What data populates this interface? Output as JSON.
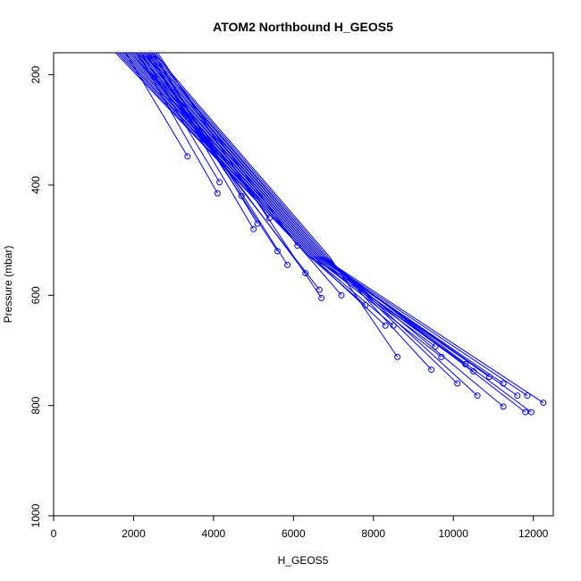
{
  "chart_data": {
    "type": "line",
    "title": "ATOM2 Northbound H_GEOS5",
    "xlabel": "H_GEOS5",
    "ylabel": "Pressure (mbar)",
    "xlim": [
      0,
      12500
    ],
    "ylim": [
      1000,
      160
    ],
    "y_reversed": true,
    "x_ticks": [
      0,
      2000,
      4000,
      6000,
      8000,
      10000,
      12000
    ],
    "y_ticks": [
      200,
      400,
      600,
      800,
      1000
    ],
    "grid": false,
    "legend": "none",
    "color": "#0000ff",
    "series": [
      {
        "points": [
          [
            1800,
            160
          ],
          [
            3350,
            348
          ]
        ]
      },
      {
        "points": [
          [
            2100,
            160
          ],
          [
            4100,
            415
          ]
        ]
      },
      {
        "points": [
          [
            2200,
            160
          ],
          [
            4150,
            395
          ]
        ]
      },
      {
        "points": [
          [
            2300,
            160
          ],
          [
            4700,
            420
          ]
        ]
      },
      {
        "points": [
          [
            2400,
            160
          ],
          [
            5000,
            480
          ]
        ]
      },
      {
        "points": [
          [
            2500,
            160
          ],
          [
            5100,
            470
          ]
        ]
      },
      {
        "points": [
          [
            2250,
            160
          ],
          [
            5400,
            460
          ]
        ]
      },
      {
        "points": [
          [
            2350,
            160
          ],
          [
            5600,
            520
          ]
        ]
      },
      {
        "points": [
          [
            2450,
            160
          ],
          [
            5850,
            545
          ]
        ]
      },
      {
        "points": [
          [
            2550,
            160
          ],
          [
            6100,
            510
          ]
        ]
      },
      {
        "points": [
          [
            2600,
            160
          ],
          [
            6700,
            605
          ]
        ]
      },
      {
        "points": [
          [
            2150,
            160
          ],
          [
            6300,
            560
          ]
        ]
      },
      {
        "points": [
          [
            2050,
            160
          ],
          [
            6650,
            590
          ]
        ]
      },
      {
        "points": [
          [
            1950,
            160
          ],
          [
            7200,
            600
          ]
        ]
      },
      {
        "points": [
          [
            2500,
            160
          ],
          [
            6900,
            530
          ],
          [
            8600,
            712
          ]
        ]
      },
      {
        "points": [
          [
            2450,
            160
          ],
          [
            6850,
            530
          ],
          [
            9450,
            735
          ]
        ]
      },
      {
        "points": [
          [
            2400,
            160
          ],
          [
            6800,
            530
          ],
          [
            10100,
            760
          ]
        ]
      },
      {
        "points": [
          [
            2350,
            160
          ],
          [
            6800,
            530
          ],
          [
            10600,
            782
          ]
        ]
      },
      {
        "points": [
          [
            2300,
            160
          ],
          [
            6750,
            530
          ],
          [
            11250,
            802
          ]
        ]
      },
      {
        "points": [
          [
            2250,
            160
          ],
          [
            6750,
            530
          ],
          [
            11800,
            812
          ]
        ]
      },
      {
        "points": [
          [
            2200,
            160
          ],
          [
            6700,
            530
          ],
          [
            11950,
            812
          ]
        ]
      },
      {
        "points": [
          [
            2150,
            160
          ],
          [
            6700,
            530
          ],
          [
            12250,
            795
          ]
        ]
      },
      {
        "points": [
          [
            2100,
            160
          ],
          [
            6650,
            530
          ],
          [
            11850,
            782
          ]
        ]
      },
      {
        "points": [
          [
            2050,
            160
          ],
          [
            6650,
            530
          ],
          [
            11600,
            782
          ]
        ]
      },
      {
        "points": [
          [
            2000,
            160
          ],
          [
            6600,
            530
          ],
          [
            11250,
            760
          ]
        ]
      },
      {
        "points": [
          [
            1950,
            160
          ],
          [
            6600,
            530
          ],
          [
            10900,
            748
          ]
        ]
      },
      {
        "points": [
          [
            1900,
            160
          ],
          [
            6550,
            530
          ],
          [
            10500,
            738
          ]
        ]
      },
      {
        "points": [
          [
            1850,
            160
          ],
          [
            6550,
            530
          ],
          [
            10300,
            725
          ]
        ]
      },
      {
        "points": [
          [
            1800,
            160
          ],
          [
            6500,
            530
          ],
          [
            9700,
            712
          ]
        ]
      },
      {
        "points": [
          [
            1750,
            160
          ],
          [
            6500,
            530
          ],
          [
            9550,
            693
          ]
        ]
      },
      {
        "points": [
          [
            1700,
            160
          ],
          [
            6450,
            530
          ],
          [
            8500,
            655
          ]
        ]
      },
      {
        "points": [
          [
            1650,
            160
          ],
          [
            6450,
            530
          ],
          [
            8300,
            655
          ]
        ]
      },
      {
        "points": [
          [
            1600,
            160
          ],
          [
            6400,
            530
          ],
          [
            7800,
            618
          ]
        ]
      },
      {
        "points": [
          [
            1550,
            160
          ],
          [
            6400,
            530
          ],
          [
            7300,
            568
          ]
        ]
      }
    ]
  }
}
